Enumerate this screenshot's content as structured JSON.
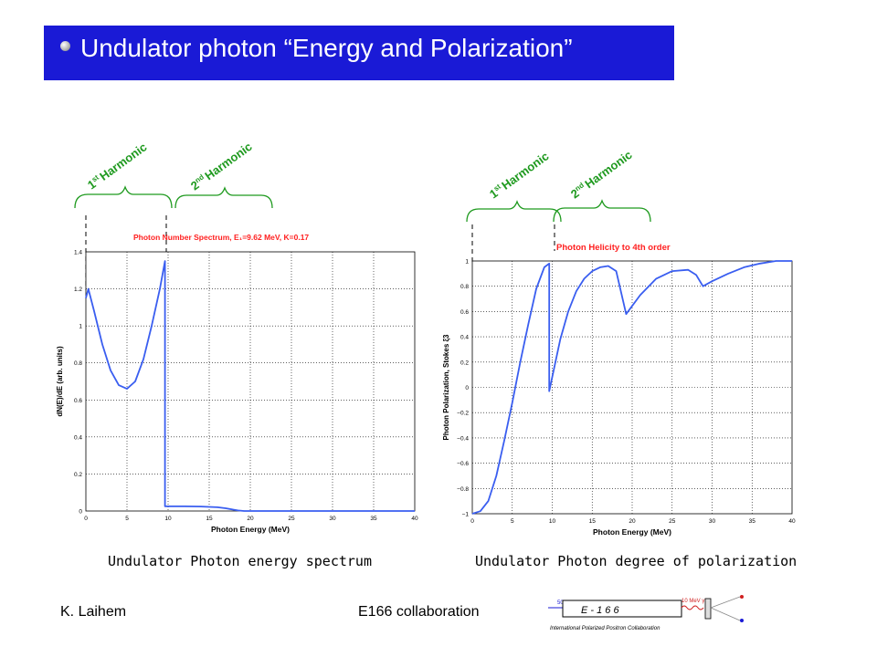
{
  "slide": {
    "title": "Undulator photon “Energy and Polarization”",
    "caption_left": "Undulator Photon energy spectrum",
    "caption_right": "Undulator Photon degree of polarization",
    "footer_left": "K. Laihem",
    "footer_center": "E166 collaboration"
  },
  "harmonic_labels": {
    "first": "Harmonic",
    "second": "Harmonic",
    "first_prefix": "1",
    "first_sup": "st",
    "second_prefix": "2",
    "second_sup": "nd"
  },
  "logo": {
    "beam_label": "50 GeV e⁻",
    "center_label": "E - 1 6 6",
    "photon_label": "10 MeV γ",
    "collab_label": "International Polarized Positron Collaboration"
  },
  "colors": {
    "title_bg": "#1a1ad6",
    "curve": "#3a5ef0",
    "chart_title": "#ff2020",
    "harmonic": "#1f9a1f"
  },
  "chart_data": [
    {
      "type": "line",
      "title": "Photon Number Spectrum, E₁=9.62 MeV, K=0.17",
      "xlabel": "Photon Energy (MeV)",
      "ylabel": "dN(E)/dE (arb. units)",
      "xlim": [
        0,
        40
      ],
      "ylim": [
        0,
        1.4
      ],
      "xticks": [
        "0",
        "5",
        "10",
        "15",
        "20",
        "25",
        "30",
        "35",
        "40"
      ],
      "yticks": [
        "0",
        "0.2",
        "0.4",
        "0.6",
        "0.8",
        "1",
        "1.2",
        "1.4"
      ],
      "grid": true,
      "series": [
        {
          "x": [
            0,
            0.3,
            1,
            2,
            3,
            4,
            5,
            6,
            7,
            8,
            9,
            9.62,
            9.62,
            12,
            14,
            16,
            17,
            18,
            18.5,
            19.24,
            20,
            40
          ],
          "y": [
            1.15,
            1.2,
            1.08,
            0.9,
            0.76,
            0.68,
            0.66,
            0.7,
            0.82,
            1.0,
            1.2,
            1.35,
            0.025,
            0.025,
            0.024,
            0.02,
            0.015,
            0.007,
            0.003,
            0.0,
            0.0,
            0.0
          ]
        }
      ]
    },
    {
      "type": "line",
      "title": "Photon Helicity to 4th order",
      "xlabel": "Photon Energy (MeV)",
      "ylabel": "Photon Polarization, Stokes ξ3",
      "xlim": [
        0,
        40
      ],
      "ylim": [
        -1,
        1
      ],
      "xticks": [
        "0",
        "5",
        "10",
        "15",
        "20",
        "25",
        "30",
        "35",
        "40"
      ],
      "yticks": [
        "−1",
        "−0.8",
        "−0.6",
        "−0.4",
        "−0.2",
        "0",
        "0.2",
        "0.4",
        "0.6",
        "0.8",
        "1"
      ],
      "grid": true,
      "series": [
        {
          "x": [
            0,
            1,
            2,
            3,
            4,
            5,
            6,
            7,
            8,
            9,
            9.62,
            9.62,
            11,
            12,
            13,
            14,
            15,
            16,
            17,
            18,
            19.24,
            19.24,
            21,
            23,
            25,
            27,
            28,
            28.86,
            30,
            32,
            34,
            36,
            38,
            40
          ],
          "y": [
            -1,
            -0.98,
            -0.9,
            -0.7,
            -0.42,
            -0.12,
            0.2,
            0.5,
            0.78,
            0.95,
            0.98,
            -0.03,
            0.38,
            0.6,
            0.76,
            0.86,
            0.92,
            0.95,
            0.96,
            0.92,
            0.58,
            0.58,
            0.73,
            0.86,
            0.92,
            0.93,
            0.89,
            0.8,
            0.84,
            0.9,
            0.95,
            0.98,
            1.0,
            1.0
          ]
        }
      ]
    }
  ]
}
